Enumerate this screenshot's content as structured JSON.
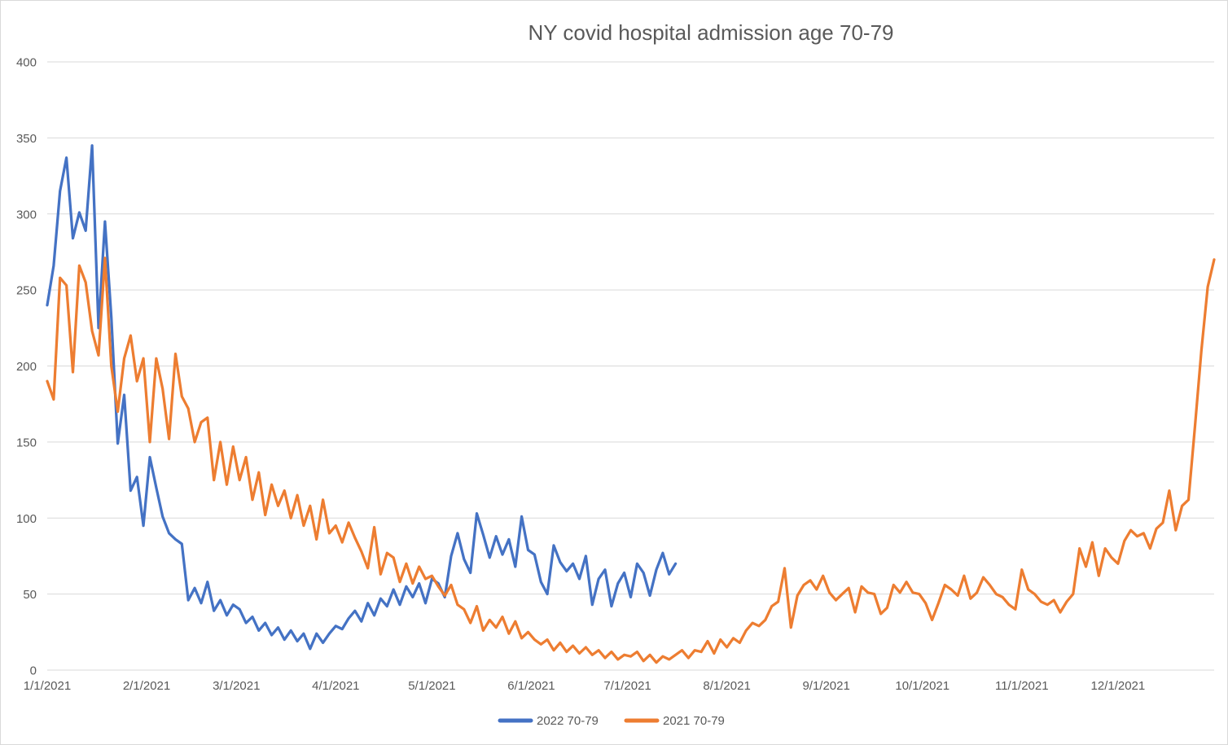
{
  "chart_data": {
    "type": "line",
    "title": "NY covid hospital admission age 70-79",
    "xlabel": "",
    "ylabel": "",
    "grid": true,
    "legend_position": "bottom",
    "colors": {
      "grid": "#D9D9D9",
      "text": "#595959",
      "background": "#FFFFFF",
      "border": "#D9D9D9"
    },
    "x_axis": {
      "tick_labels": [
        "1/1/2021",
        "2/1/2021",
        "3/1/2021",
        "4/1/2021",
        "5/1/2021",
        "6/1/2021",
        "7/1/2021",
        "8/1/2021",
        "9/1/2021",
        "10/1/2021",
        "11/1/2021",
        "12/1/2021"
      ],
      "tick_days": [
        0,
        31,
        59,
        90,
        120,
        151,
        181,
        212,
        243,
        273,
        304,
        334
      ],
      "range_days": [
        0,
        364
      ]
    },
    "y_axis": {
      "min": 0,
      "max": 400,
      "step": 50,
      "tick_labels": [
        "0",
        "50",
        "100",
        "150",
        "200",
        "250",
        "300",
        "350",
        "400"
      ]
    },
    "series": [
      {
        "name": "2022 70-79",
        "color": "#4472C4",
        "start_day": 0,
        "step_days": 2,
        "values": [
          240,
          266,
          315,
          337,
          284,
          301,
          289,
          345,
          225,
          295,
          232,
          149,
          181,
          118,
          127,
          95,
          140,
          120,
          101,
          90,
          86,
          83,
          46,
          54,
          44,
          58,
          39,
          46,
          36,
          43,
          40,
          31,
          35,
          26,
          31,
          23,
          28,
          20,
          26,
          19,
          24,
          14,
          24,
          18,
          24,
          29,
          27,
          34,
          39,
          32,
          44,
          36,
          47,
          42,
          53,
          43,
          55,
          48,
          57,
          44,
          60,
          57,
          48,
          75,
          90,
          73,
          64,
          103,
          89,
          74,
          88,
          76,
          86,
          68,
          101,
          79,
          76,
          58,
          50,
          82,
          71,
          65,
          70,
          60,
          75,
          43,
          60,
          66,
          42,
          57,
          64,
          48,
          70,
          64,
          49,
          66,
          77,
          63,
          70
        ]
      },
      {
        "name": "2021 70-79",
        "color": "#ED7D31",
        "start_day": 0,
        "step_days": 2,
        "values": [
          190,
          178,
          258,
          253,
          196,
          266,
          255,
          223,
          207,
          271,
          200,
          170,
          205,
          220,
          190,
          205,
          150,
          205,
          185,
          152,
          208,
          180,
          172,
          150,
          163,
          166,
          125,
          150,
          122,
          147,
          125,
          140,
          112,
          130,
          102,
          122,
          108,
          118,
          100,
          115,
          95,
          108,
          86,
          112,
          90,
          95,
          84,
          97,
          87,
          78,
          67,
          94,
          63,
          77,
          74,
          58,
          70,
          57,
          68,
          60,
          62,
          55,
          49,
          56,
          43,
          40,
          31,
          42,
          26,
          33,
          28,
          35,
          24,
          32,
          21,
          25,
          20,
          17,
          20,
          13,
          18,
          12,
          16,
          11,
          15,
          10,
          13,
          8,
          12,
          7,
          10,
          9,
          12,
          6,
          10,
          5,
          9,
          7,
          10,
          13,
          8,
          13,
          12,
          19,
          11,
          20,
          15,
          21,
          18,
          26,
          31,
          29,
          33,
          42,
          45,
          67,
          28,
          49,
          56,
          59,
          53,
          62,
          51,
          46,
          50,
          54,
          38,
          55,
          51,
          50,
          37,
          41,
          56,
          51,
          58,
          51,
          50,
          44,
          33,
          44,
          56,
          53,
          49,
          62,
          47,
          51,
          61,
          56,
          50,
          48,
          43,
          40,
          66,
          53,
          50,
          45,
          43,
          46,
          38,
          45,
          50,
          80,
          68,
          84,
          62,
          80,
          74,
          70,
          85,
          92,
          88,
          90,
          80,
          93,
          97,
          118,
          92,
          108,
          112,
          160,
          210,
          252,
          270
        ]
      }
    ]
  }
}
